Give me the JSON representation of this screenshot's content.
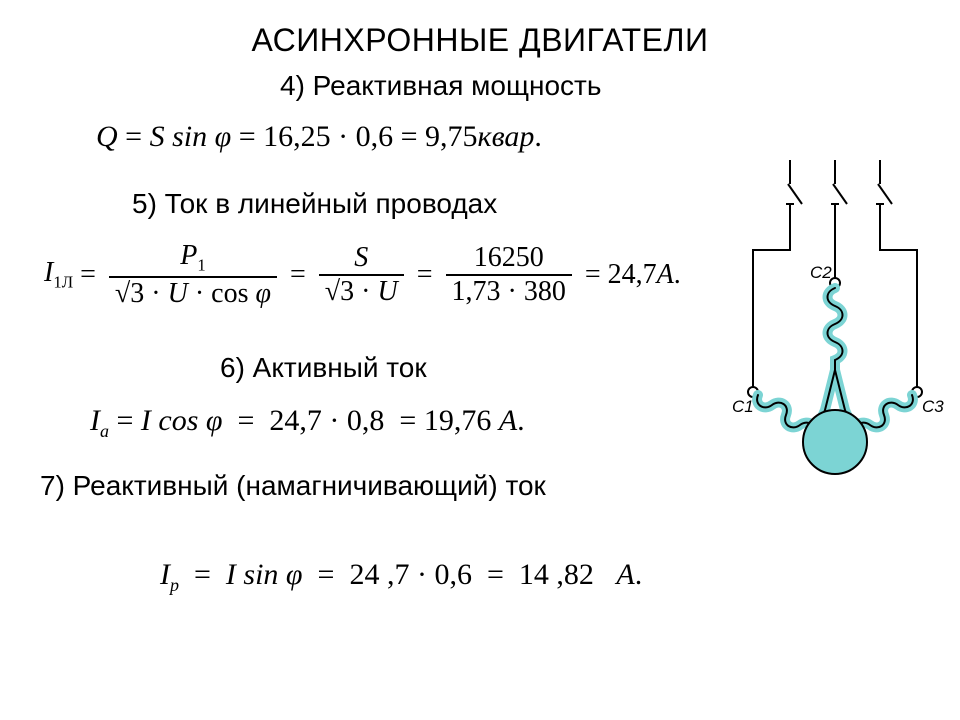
{
  "title": "АСИНХРОННЫЕ ДВИГАТЕЛИ",
  "section4": {
    "label": "4) Реактивная мощность",
    "eq_lhs": "Q",
    "eq_eq1": "=",
    "eq_mid": "S sin φ",
    "eq_eq2": "=",
    "eq_calc": "16,25 · 0,6",
    "eq_eq3": "=",
    "eq_res_val": "9,75",
    "eq_res_unit": "квар",
    "eq_dot": "."
  },
  "section5": {
    "label": "5) Ток в  линейный проводах",
    "lhs_sym": "I",
    "lhs_sub": "1Л",
    "eq": "=",
    "frac1_num_sym": "P",
    "frac1_num_sub": "1",
    "frac1_den": "√3 · U · cos φ",
    "frac2_num": "S",
    "frac2_den": "√3 · U",
    "frac3_num": "16250",
    "frac3_den": "1,73 · 380",
    "res": "24,7",
    "unit": "A",
    "dot": "."
  },
  "section6": {
    "label": "6) Активный ток",
    "lhs_sym": "I",
    "lhs_sub": "a",
    "eq1": "=",
    "mid": "I cos φ",
    "eq2": "=",
    "calc": "24,7 · 0,8",
    "eq3": "=",
    "res": "19,76",
    "unit": "A",
    "dot": "."
  },
  "section7": {
    "label": "7) Реактивный (намагничивающий) ток",
    "lhs_sym": "I",
    "lhs_sub": "p",
    "eq1": "=",
    "mid": "I sin φ",
    "eq2": "=",
    "calc": "24 ,7 · 0,6",
    "eq3": "=",
    "res": "14 ,82",
    "unit": "A",
    "dot": "."
  },
  "diagram": {
    "terminal_labels": {
      "c1": "С1",
      "c2": "С2",
      "c3": "С3"
    },
    "colors": {
      "wire": "#000000",
      "coil_fill": "#7cd4d4",
      "coil_stroke": "#000000",
      "rotor_fill": "#7cd4d4",
      "rotor_stroke": "#000000",
      "terminal_fill": "#ffffff",
      "terminal_stroke": "#000000"
    },
    "line_width": 2,
    "rotor_radius": 32
  }
}
